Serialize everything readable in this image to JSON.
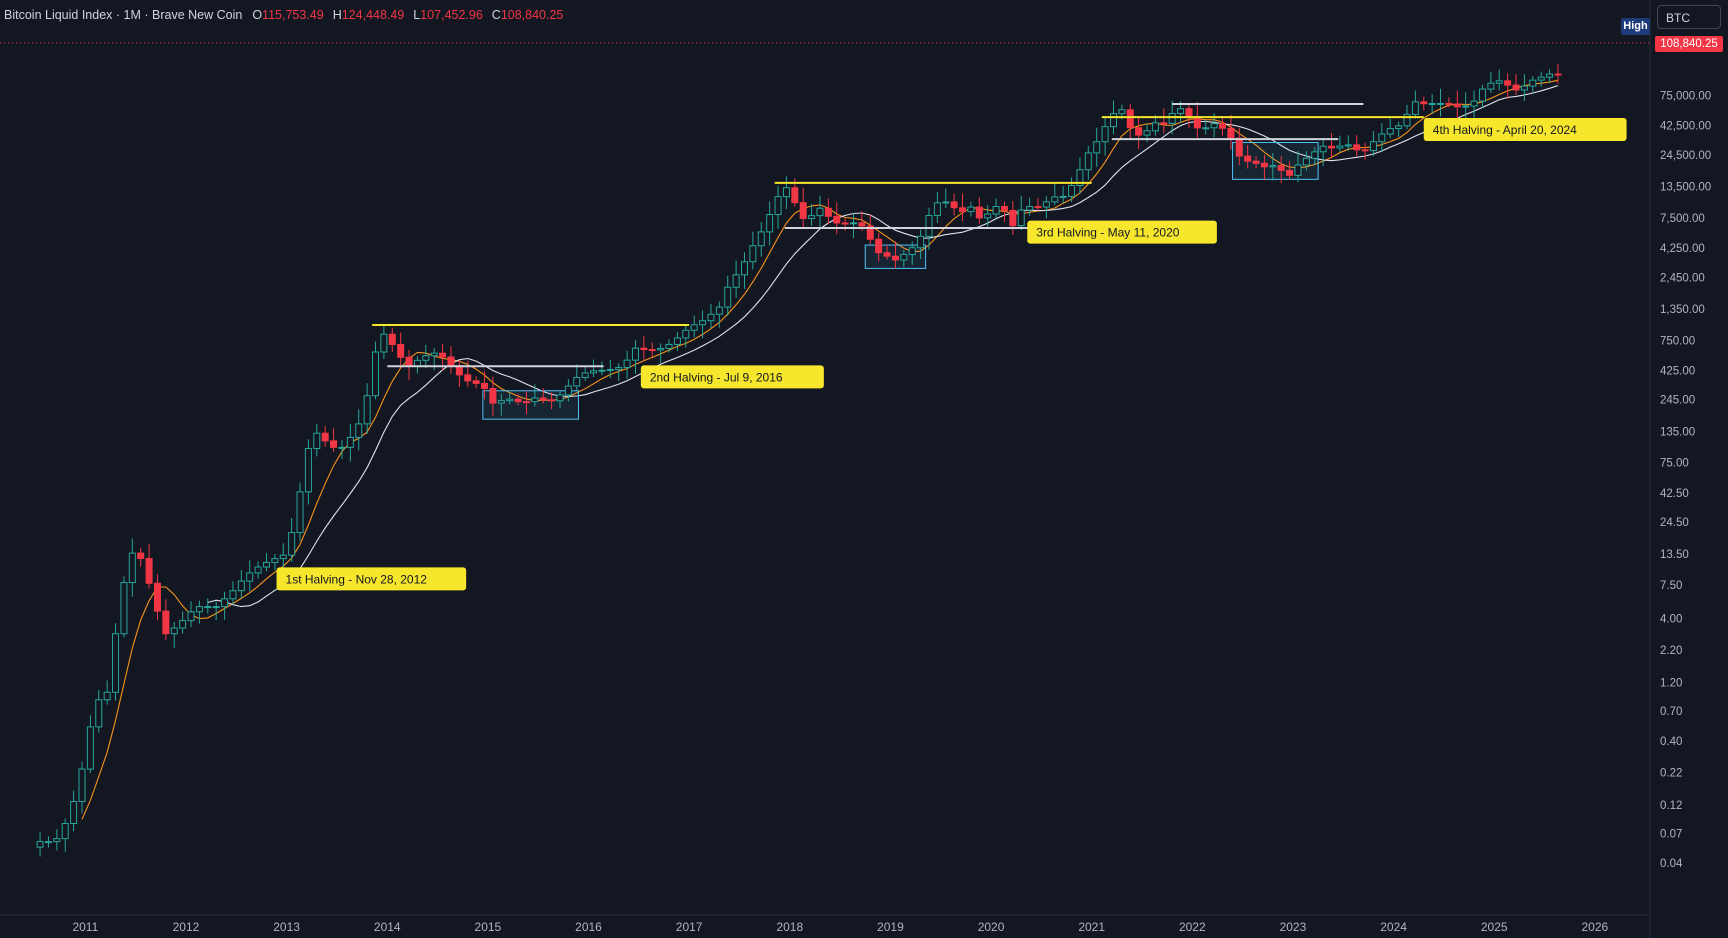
{
  "header": {
    "symbol": "Bitcoin Liquid Index · 1M · Brave New Coin",
    "open_label": "O",
    "open": "115,753.49",
    "high_label": "H",
    "high": "124,448.49",
    "low_label": "L",
    "low": "107,452.96",
    "close_label": "C",
    "close": "108,840.25"
  },
  "toolbar": {
    "symbol_box": "BTC",
    "high_tag": "High"
  },
  "price_scale": {
    "last_price": "108,840.25",
    "last_price_color": "#f23645"
  },
  "chart_data": {
    "type": "candlestick",
    "scale": "log",
    "ylim": [
      0.02,
      230000
    ],
    "xlim": [
      2010.45,
      2026.25
    ],
    "yticks": [
      0.04,
      0.07,
      0.12,
      0.22,
      0.4,
      0.7,
      1.2,
      2.2,
      4.0,
      7.5,
      13.5,
      24.5,
      42.5,
      75.0,
      135.0,
      245.0,
      425.0,
      750.0,
      1350.0,
      2450.0,
      4250.0,
      7500.0,
      13500.0,
      24500.0,
      42500.0,
      75000.0
    ],
    "ytick_labels": [
      "0.04",
      "0.07",
      "0.12",
      "0.22",
      "0.40",
      "0.70",
      "1.20",
      "2.20",
      "4.00",
      "7.50",
      "13.50",
      "24.50",
      "42.50",
      "75.00",
      "135.00",
      "245.00",
      "425.00",
      "750.00",
      "1,350.00",
      "2,450.00",
      "4,250.00",
      "7,500.00",
      "13,500.00",
      "24,500.00",
      "42,500.00",
      "75,000.00"
    ],
    "xticks": [
      2011,
      2012,
      2013,
      2014,
      2015,
      2016,
      2017,
      2018,
      2019,
      2020,
      2021,
      2022,
      2023,
      2024,
      2025,
      2026
    ],
    "xtick_labels": [
      "2011",
      "2012",
      "2013",
      "2014",
      "2015",
      "2016",
      "2017",
      "2018",
      "2019",
      "2020",
      "2021",
      "2022",
      "2023",
      "2024",
      "2025",
      "2026"
    ],
    "colors": {
      "up": "#26a69a",
      "down": "#f23645",
      "ma_fast": "#f7931a",
      "ma_slow": "#e0e3eb",
      "level": "#f7e72c",
      "level_white": "#d1d4dc",
      "box": "#4fc3f7"
    },
    "price_anchors": [
      [
        2010.55,
        0.06
      ],
      [
        2010.7,
        0.06
      ],
      [
        2010.85,
        0.1
      ],
      [
        2011.0,
        0.3
      ],
      [
        2011.1,
        0.9
      ],
      [
        2011.2,
        0.8
      ],
      [
        2011.3,
        3.0
      ],
      [
        2011.42,
        12.0
      ],
      [
        2011.5,
        15.0
      ],
      [
        2011.58,
        11.0
      ],
      [
        2011.7,
        5.0
      ],
      [
        2011.8,
        3.0
      ],
      [
        2011.92,
        3.5
      ],
      [
        2012.1,
        5.0
      ],
      [
        2012.3,
        5.0
      ],
      [
        2012.45,
        6.5
      ],
      [
        2012.6,
        9.0
      ],
      [
        2012.75,
        11.0
      ],
      [
        2012.9,
        12.5
      ],
      [
        2013.0,
        13.5
      ],
      [
        2013.1,
        30.0
      ],
      [
        2013.2,
        90.0
      ],
      [
        2013.28,
        135.0
      ],
      [
        2013.35,
        120.0
      ],
      [
        2013.45,
        100.0
      ],
      [
        2013.55,
        100.0
      ],
      [
        2013.7,
        140.0
      ],
      [
        2013.82,
        300.0
      ],
      [
        2013.92,
        900.0
      ],
      [
        2014.0,
        800.0
      ],
      [
        2014.1,
        600.0
      ],
      [
        2014.2,
        450.0
      ],
      [
        2014.35,
        550.0
      ],
      [
        2014.5,
        600.0
      ],
      [
        2014.6,
        500.0
      ],
      [
        2014.7,
        400.0
      ],
      [
        2014.8,
        350.0
      ],
      [
        2014.95,
        320.0
      ],
      [
        2015.05,
        230.0
      ],
      [
        2015.2,
        250.0
      ],
      [
        2015.35,
        230.0
      ],
      [
        2015.5,
        260.0
      ],
      [
        2015.6,
        230.0
      ],
      [
        2015.75,
        280.0
      ],
      [
        2015.85,
        360.0
      ],
      [
        2016.0,
        420.0
      ],
      [
        2016.2,
        430.0
      ],
      [
        2016.35,
        460.0
      ],
      [
        2016.45,
        650.0
      ],
      [
        2016.6,
        620.0
      ],
      [
        2016.75,
        650.0
      ],
      [
        2016.85,
        740.0
      ],
      [
        2017.0,
        960.0
      ],
      [
        2017.15,
        1100.0
      ],
      [
        2017.3,
        1400.0
      ],
      [
        2017.42,
        2400.0
      ],
      [
        2017.5,
        2700.0
      ],
      [
        2017.6,
        4000.0
      ],
      [
        2017.75,
        6400.0
      ],
      [
        2017.85,
        10000.0
      ],
      [
        2017.95,
        14000.0
      ],
      [
        2018.05,
        10000.0
      ],
      [
        2018.15,
        7000.0
      ],
      [
        2018.3,
        9000.0
      ],
      [
        2018.4,
        7500.0
      ],
      [
        2018.5,
        6500.0
      ],
      [
        2018.6,
        7000.0
      ],
      [
        2018.75,
        6300.0
      ],
      [
        2018.85,
        4000.0
      ],
      [
        2018.95,
        3700.0
      ],
      [
        2019.05,
        3400.0
      ],
      [
        2019.2,
        4100.0
      ],
      [
        2019.3,
        5300.0
      ],
      [
        2019.4,
        8500.0
      ],
      [
        2019.5,
        10800.0
      ],
      [
        2019.6,
        9500.0
      ],
      [
        2019.7,
        8300.0
      ],
      [
        2019.8,
        9200.0
      ],
      [
        2019.9,
        7200.0
      ],
      [
        2020.05,
        9300.0
      ],
      [
        2020.15,
        8500.0
      ],
      [
        2020.22,
        6400.0
      ],
      [
        2020.3,
        8700.0
      ],
      [
        2020.4,
        9400.0
      ],
      [
        2020.5,
        9100.0
      ],
      [
        2020.6,
        11300.0
      ],
      [
        2020.7,
        10800.0
      ],
      [
        2020.8,
        13800.0
      ],
      [
        2020.9,
        19700.0
      ],
      [
        2021.0,
        29000.0
      ],
      [
        2021.08,
        33000.0
      ],
      [
        2021.15,
        45000.0
      ],
      [
        2021.25,
        58000.0
      ],
      [
        2021.33,
        57000.0
      ],
      [
        2021.4,
        37000.0
      ],
      [
        2021.5,
        35000.0
      ],
      [
        2021.58,
        41000.0
      ],
      [
        2021.66,
        47000.0
      ],
      [
        2021.75,
        43000.0
      ],
      [
        2021.83,
        61000.0
      ],
      [
        2021.92,
        57000.0
      ],
      [
        2022.0,
        46000.0
      ],
      [
        2022.08,
        38000.0
      ],
      [
        2022.17,
        43000.0
      ],
      [
        2022.25,
        45000.0
      ],
      [
        2022.33,
        38000.0
      ],
      [
        2022.42,
        31000.0
      ],
      [
        2022.5,
        20000.0
      ],
      [
        2022.58,
        23000.0
      ],
      [
        2022.66,
        20000.0
      ],
      [
        2022.75,
        19400.0
      ],
      [
        2022.83,
        20500.0
      ],
      [
        2022.92,
        17000.0
      ],
      [
        2023.0,
        16500.0
      ],
      [
        2023.08,
        23000.0
      ],
      [
        2023.17,
        23000.0
      ],
      [
        2023.25,
        28400.0
      ],
      [
        2023.33,
        29200.0
      ],
      [
        2023.42,
        27200.0
      ],
      [
        2023.5,
        30400.0
      ],
      [
        2023.58,
        29200.0
      ],
      [
        2023.66,
        26000.0
      ],
      [
        2023.75,
        27000.0
      ],
      [
        2023.83,
        34500.0
      ],
      [
        2023.92,
        37700.0
      ],
      [
        2024.0,
        42300.0
      ],
      [
        2024.08,
        42500.0
      ],
      [
        2024.17,
        61000.0
      ],
      [
        2024.25,
        71000.0
      ],
      [
        2024.33,
        60600.0
      ],
      [
        2024.42,
        67500.0
      ],
      [
        2024.5,
        62700.0
      ],
      [
        2024.58,
        64600.0
      ],
      [
        2024.66,
        58900.0
      ],
      [
        2024.75,
        63300.0
      ],
      [
        2024.83,
        70200.0
      ],
      [
        2024.92,
        96400.0
      ],
      [
        2025.0,
        93400.0
      ],
      [
        2025.08,
        102400.0
      ],
      [
        2025.17,
        84400.0
      ],
      [
        2025.25,
        82500.0
      ],
      [
        2025.33,
        94200.0
      ],
      [
        2025.42,
        104600.0
      ],
      [
        2025.5,
        107100.0
      ],
      [
        2025.58,
        115700.0
      ],
      [
        2025.66,
        108840.0
      ]
    ],
    "levels": [
      {
        "price": 1000,
        "x0": 2013.85,
        "x1": 2017.0,
        "color": "level"
      },
      {
        "price": 460,
        "x0": 2014.0,
        "x1": 2016.15,
        "color": "level_white"
      },
      {
        "price": 14500,
        "x0": 2017.85,
        "x1": 2021.0,
        "color": "level"
      },
      {
        "price": 6200,
        "x0": 2017.95,
        "x1": 2020.4,
        "color": "level_white"
      },
      {
        "price": 50000,
        "x0": 2021.1,
        "x1": 2024.3,
        "color": "level"
      },
      {
        "price": 33000,
        "x0": 2021.2,
        "x1": 2023.45,
        "color": "level_white"
      },
      {
        "price": 64000,
        "x0": 2021.8,
        "x1": 2023.7,
        "color": "level_white"
      }
    ],
    "boxes": [
      {
        "x0": 2014.95,
        "x1": 2015.9,
        "y0": 170,
        "y1": 290
      },
      {
        "x0": 2018.75,
        "x1": 2019.35,
        "y0": 2900,
        "y1": 4500
      },
      {
        "x0": 2022.4,
        "x1": 2023.25,
        "y0": 15500,
        "y1": 31000
      }
    ],
    "annotations": [
      {
        "text": "1st Halving - Nov 28, 2012",
        "x": 2012.9,
        "y": 8.5
      },
      {
        "text": "2nd Halving - Jul 9, 2016",
        "x": 2016.52,
        "y": 380
      },
      {
        "text": "3rd Halving - May 11, 2020",
        "x": 2020.36,
        "y": 5800
      },
      {
        "text": "4th Halving - April 20, 2024",
        "x": 2024.3,
        "y": 40000
      }
    ]
  }
}
